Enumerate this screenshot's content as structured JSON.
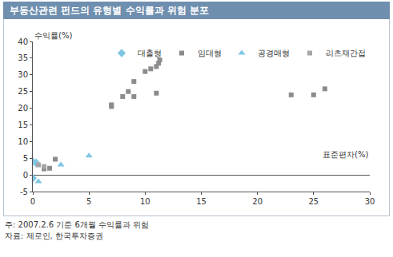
{
  "chart_data": {
    "type": "scatter",
    "title": "부동산관련 펀드의 유형별 수익률과 위험 분포",
    "xlabel": "표준편차(%)",
    "ylabel": "수익률(%)",
    "xlim": [
      0,
      30
    ],
    "xticks": [
      0,
      5,
      10,
      15,
      20,
      25,
      30
    ],
    "ylim": [
      -5,
      40
    ],
    "yticks": [
      -5,
      0,
      5,
      10,
      15,
      20,
      25,
      30,
      35,
      40
    ],
    "grid": false,
    "legend": "top right",
    "series": [
      {
        "name": "대출형",
        "color": "#7fc6e4",
        "marker": "diamond",
        "x": [
          0,
          0.3,
          0
        ],
        "values": [
          4,
          3.5,
          -1
        ]
      },
      {
        "name": "임대형",
        "color": "#8c8c8c",
        "marker": "square",
        "x": [
          1,
          1.5,
          2,
          7,
          7,
          8,
          8.5,
          9,
          9,
          10,
          10.5,
          11,
          11,
          11.2,
          11.3,
          23,
          25,
          26
        ],
        "values": [
          1.8,
          2,
          4.7,
          20.5,
          21,
          23.5,
          25,
          28,
          23.5,
          31,
          31.8,
          32.5,
          24.5,
          33.5,
          34.5,
          24,
          24,
          25.8
        ]
      },
      {
        "name": "공경매형",
        "color": "#7fc6e4",
        "marker": "triangle-up",
        "x": [
          0.3,
          0.5,
          2.5,
          5
        ],
        "values": [
          4,
          -2,
          3,
          5.7
        ]
      },
      {
        "name": "리츠재간접",
        "color": "#a6a6a6",
        "marker": "square",
        "x": [
          0.5,
          1
        ],
        "values": [
          3,
          2.5
        ]
      }
    ],
    "notes": [
      "주: 2007.2.6 기준 6개월 수익률과 위험",
      "자료: 제로인, 한국투자증권"
    ]
  }
}
